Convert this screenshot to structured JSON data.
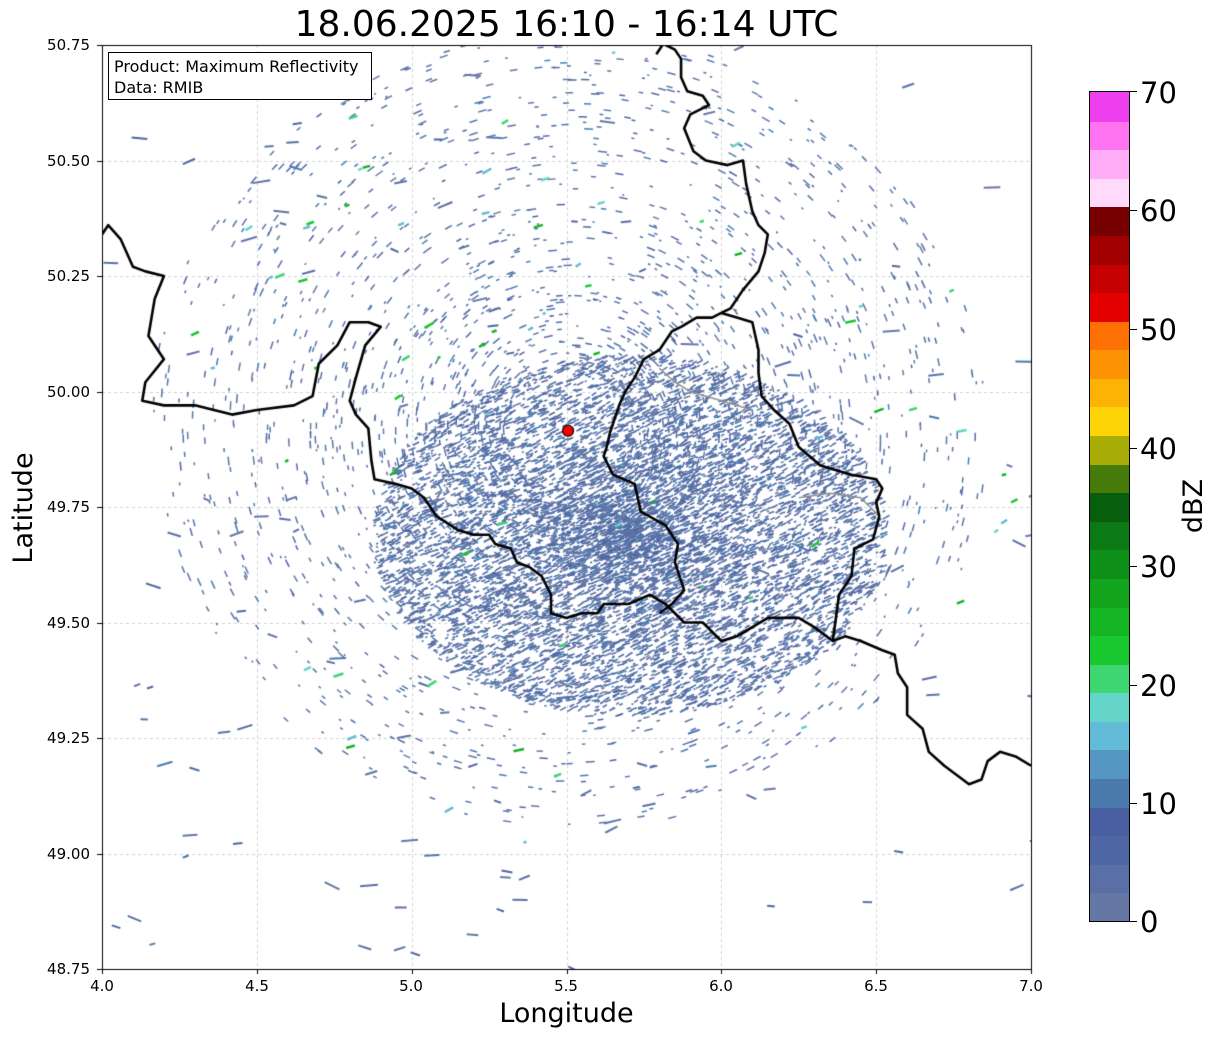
{
  "title": "18.06.2025 16:10 - 16:14 UTC",
  "info_box": {
    "line1": "Product: Maximum Reflectivity",
    "line2": "Data: RMIB"
  },
  "axes": {
    "xlabel": "Longitude",
    "ylabel": "Latitude",
    "xlim": [
      4.0,
      7.0
    ],
    "ylim": [
      48.75,
      50.75
    ],
    "xticks": [
      "4.0",
      "4.5",
      "5.0",
      "5.5",
      "6.0",
      "6.5",
      "7.0"
    ],
    "yticks": [
      "50.75",
      "50.50",
      "50.25",
      "50.00",
      "49.75",
      "49.50",
      "49.25",
      "49.00",
      "48.75"
    ],
    "grid": true
  },
  "radar_site": {
    "lon": 5.505,
    "lat": 49.915,
    "color": "#ff0000"
  },
  "colorbar": {
    "label": "dBZ",
    "min": 0,
    "max": 70,
    "ticks": [
      "70",
      "60",
      "50",
      "40",
      "30",
      "20",
      "10",
      "0"
    ],
    "colors": [
      "#6577a5",
      "#5a6fa5",
      "#4e66a3",
      "#4a5fa2",
      "#4b7aaf",
      "#5597c2",
      "#62bcd7",
      "#64d5c8",
      "#3dd671",
      "#18c82e",
      "#14b624",
      "#11a41c",
      "#0e8f18",
      "#0b7a14",
      "#075f0e",
      "#467a0a",
      "#a9ad08",
      "#fdd507",
      "#fdb306",
      "#fd9205",
      "#fd7104",
      "#e50000",
      "#c40000",
      "#a20000",
      "#770000",
      "#ffdafa",
      "#ffadf6",
      "#ff74f0",
      "#ee3fee"
    ]
  },
  "borders": [
    [
      [
        4.0,
        50.34
      ],
      [
        4.02,
        50.36
      ],
      [
        4.06,
        50.33
      ],
      [
        4.1,
        50.27
      ],
      [
        4.14,
        50.26
      ],
      [
        4.2,
        50.25
      ],
      [
        4.17,
        50.2
      ],
      [
        4.15,
        50.12
      ],
      [
        4.2,
        50.07
      ],
      [
        4.14,
        50.02
      ],
      [
        4.13,
        49.98
      ],
      [
        4.2,
        49.97
      ],
      [
        4.3,
        49.97
      ],
      [
        4.42,
        49.95
      ],
      [
        4.5,
        49.96
      ],
      [
        4.62,
        49.97
      ],
      [
        4.68,
        49.99
      ],
      [
        4.7,
        50.06
      ],
      [
        4.76,
        50.1
      ],
      [
        4.8,
        50.15
      ],
      [
        4.86,
        50.15
      ],
      [
        4.9,
        50.14
      ],
      [
        4.85,
        50.1
      ],
      [
        4.82,
        50.03
      ],
      [
        4.8,
        49.98
      ],
      [
        4.82,
        49.95
      ],
      [
        4.86,
        49.92
      ],
      [
        4.87,
        49.85
      ],
      [
        4.88,
        49.81
      ],
      [
        4.95,
        49.8
      ],
      [
        5.0,
        49.79
      ],
      [
        5.04,
        49.77
      ],
      [
        5.08,
        49.73
      ],
      [
        5.15,
        49.7
      ],
      [
        5.2,
        49.69
      ],
      [
        5.25,
        49.69
      ],
      [
        5.27,
        49.67
      ],
      [
        5.32,
        49.66
      ],
      [
        5.34,
        49.63
      ],
      [
        5.38,
        49.62
      ],
      [
        5.42,
        49.6
      ],
      [
        5.45,
        49.56
      ],
      [
        5.45,
        49.52
      ],
      [
        5.5,
        49.51
      ],
      [
        5.55,
        49.52
      ],
      [
        5.6,
        49.52
      ],
      [
        5.62,
        49.54
      ],
      [
        5.7,
        49.54
      ],
      [
        5.77,
        49.56
      ],
      [
        5.82,
        49.54
      ],
      [
        5.88,
        49.5
      ],
      [
        5.94,
        49.5
      ],
      [
        6.0,
        49.46
      ],
      [
        6.05,
        49.47
      ],
      [
        6.1,
        49.49
      ],
      [
        6.15,
        49.51
      ],
      [
        6.2,
        49.51
      ],
      [
        6.25,
        49.51
      ],
      [
        6.3,
        49.49
      ],
      [
        6.36,
        49.46
      ],
      [
        6.4,
        49.47
      ],
      [
        6.45,
        49.46
      ],
      [
        6.52,
        49.44
      ],
      [
        6.56,
        49.43
      ],
      [
        6.57,
        49.39
      ],
      [
        6.6,
        49.36
      ],
      [
        6.6,
        49.3
      ],
      [
        6.65,
        49.27
      ],
      [
        6.67,
        49.22
      ],
      [
        6.72,
        49.19
      ],
      [
        6.76,
        49.17
      ],
      [
        6.8,
        49.15
      ],
      [
        6.84,
        49.16
      ],
      [
        6.86,
        49.2
      ],
      [
        6.9,
        49.22
      ],
      [
        6.95,
        49.21
      ],
      [
        7.0,
        49.19
      ]
    ],
    [
      [
        5.79,
        50.73
      ],
      [
        5.82,
        50.76
      ]
    ],
    [
      [
        5.78,
        50.76
      ],
      [
        5.82,
        50.75
      ],
      [
        5.85,
        50.74
      ],
      [
        5.87,
        50.72
      ],
      [
        5.87,
        50.68
      ],
      [
        5.89,
        50.65
      ],
      [
        5.94,
        50.64
      ],
      [
        5.96,
        50.62
      ],
      [
        5.9,
        50.6
      ],
      [
        5.88,
        50.57
      ],
      [
        5.91,
        50.52
      ],
      [
        5.95,
        50.5
      ],
      [
        6.02,
        50.49
      ],
      [
        6.07,
        50.5
      ],
      [
        6.08,
        50.45
      ],
      [
        6.1,
        50.39
      ],
      [
        6.12,
        50.36
      ],
      [
        6.15,
        50.34
      ],
      [
        6.14,
        50.3
      ],
      [
        6.12,
        50.26
      ],
      [
        6.07,
        50.22
      ],
      [
        6.03,
        50.18
      ],
      [
        6.0,
        50.17
      ]
    ],
    [
      [
        6.0,
        50.17
      ],
      [
        5.97,
        50.16
      ],
      [
        5.92,
        50.16
      ],
      [
        5.87,
        50.14
      ],
      [
        5.84,
        50.13
      ],
      [
        5.8,
        50.09
      ],
      [
        5.75,
        50.07
      ],
      [
        5.72,
        50.03
      ],
      [
        5.69,
        50.0
      ],
      [
        5.67,
        49.97
      ],
      [
        5.64,
        49.91
      ],
      [
        5.63,
        49.88
      ],
      [
        5.62,
        49.86
      ],
      [
        5.65,
        49.82
      ],
      [
        5.72,
        49.8
      ],
      [
        5.74,
        49.74
      ],
      [
        5.82,
        49.71
      ],
      [
        5.86,
        49.67
      ],
      [
        5.85,
        49.63
      ],
      [
        5.88,
        49.57
      ],
      [
        5.84,
        49.54
      ],
      [
        5.8,
        49.52
      ]
    ],
    [
      [
        6.0,
        50.17
      ],
      [
        6.05,
        50.16
      ],
      [
        6.1,
        50.15
      ],
      [
        6.12,
        50.09
      ],
      [
        6.12,
        50.04
      ],
      [
        6.13,
        49.99
      ],
      [
        6.17,
        49.96
      ],
      [
        6.22,
        49.93
      ],
      [
        6.25,
        49.88
      ],
      [
        6.32,
        49.84
      ],
      [
        6.42,
        49.82
      ],
      [
        6.5,
        49.81
      ],
      [
        6.52,
        49.79
      ],
      [
        6.5,
        49.76
      ],
      [
        6.51,
        49.73
      ],
      [
        6.49,
        49.68
      ],
      [
        6.43,
        49.66
      ],
      [
        6.42,
        49.6
      ],
      [
        6.38,
        49.56
      ],
      [
        6.36,
        49.46
      ]
    ]
  ],
  "internal_borders": [
    [
      [
        5.8,
        50.05
      ],
      [
        5.85,
        50.02
      ],
      [
        5.9,
        50.0
      ],
      [
        6.0,
        49.98
      ],
      [
        6.1,
        49.96
      ]
    ],
    [
      [
        6.25,
        49.77
      ],
      [
        6.35,
        49.78
      ],
      [
        6.45,
        49.77
      ],
      [
        6.51,
        49.73
      ]
    ]
  ]
}
